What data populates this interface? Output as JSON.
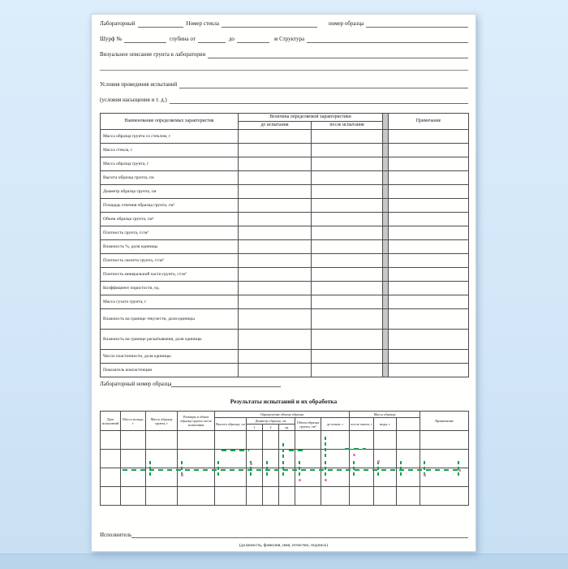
{
  "form_top": {
    "line1": {
      "l1": "Лабораторный",
      "l2": "Номер стекла",
      "l3": "номер образца"
    },
    "line2": {
      "l1": "Шурф №",
      "l2": "глубина от",
      "l3": "до",
      "l4": "м Структура"
    },
    "line3": "Визуальное описание грунта в лаборатории",
    "line5": "Условия проведения испытаний",
    "line6": "(условия насыщения и т. д.)"
  },
  "upper_table": {
    "col_name_header": "Наименование определяемых характеристик",
    "value_group_header": "Величина определяемой характеристики",
    "sub_before": "до испытания",
    "sub_after": "после испытания",
    "notes_header": "Примечание",
    "rows": [
      "Масса образца грунта со стеклом, г",
      "Масса стекла, г",
      "Масса образца грунта, г",
      "Высота образца грунта, см",
      "Диаметр образца грунта, см",
      "Площадь сечения образца грунта, см²",
      "Объем образца грунта, см³",
      "Плотность грунта, г/см³",
      "Влажность %, доля единицы",
      "Плотность скелета грунта, г/см³",
      "Плотность минеральной части грунта, г/см³",
      "Коэффициент пористости, ед.",
      "Масса сухого грунта, г",
      "Влажность на границе текучести, доля единицы",
      "Влажность на границе раскатывания, доля единицы",
      "Число пластичности, доля единицы",
      "Показатель консистенции"
    ],
    "tall_row_indices": [
      13,
      14
    ]
  },
  "mid": {
    "lab_number_label": "Лабораторный номер образца",
    "results_title": "Результаты испытаний и их обработка"
  },
  "lower_table": {
    "col1": "Дата испытаний",
    "col2": "Масса кольца, г",
    "col3": "Масса образца грунта, г",
    "col4": "Размеры и объем образца грунта после испытания",
    "groupA": "Определение объема образца",
    "a1": "Высота образца, см",
    "a2": "Диаметр образца, см",
    "a2subs": [
      "1",
      "2",
      "3",
      "ср."
    ],
    "a3": "Объем образца грунта, см³",
    "groupB": "Масса образца",
    "b1": "до опыта, г",
    "b2": "после опыта, г",
    "b3": "воды, г",
    "notes": "Примечание",
    "body_rows": [
      "",
      "",
      "",
      ""
    ]
  },
  "footer": {
    "executor_label": "Исполнитель",
    "signature_hint": "(должность, фамилия, имя, отчество, подпись)"
  },
  "colors": {
    "annotation_green": "#12a14b",
    "annotation_pink": "#dd7fbe",
    "backdrop_blue": "#d3e7f8",
    "page_white": "#fffffe"
  }
}
